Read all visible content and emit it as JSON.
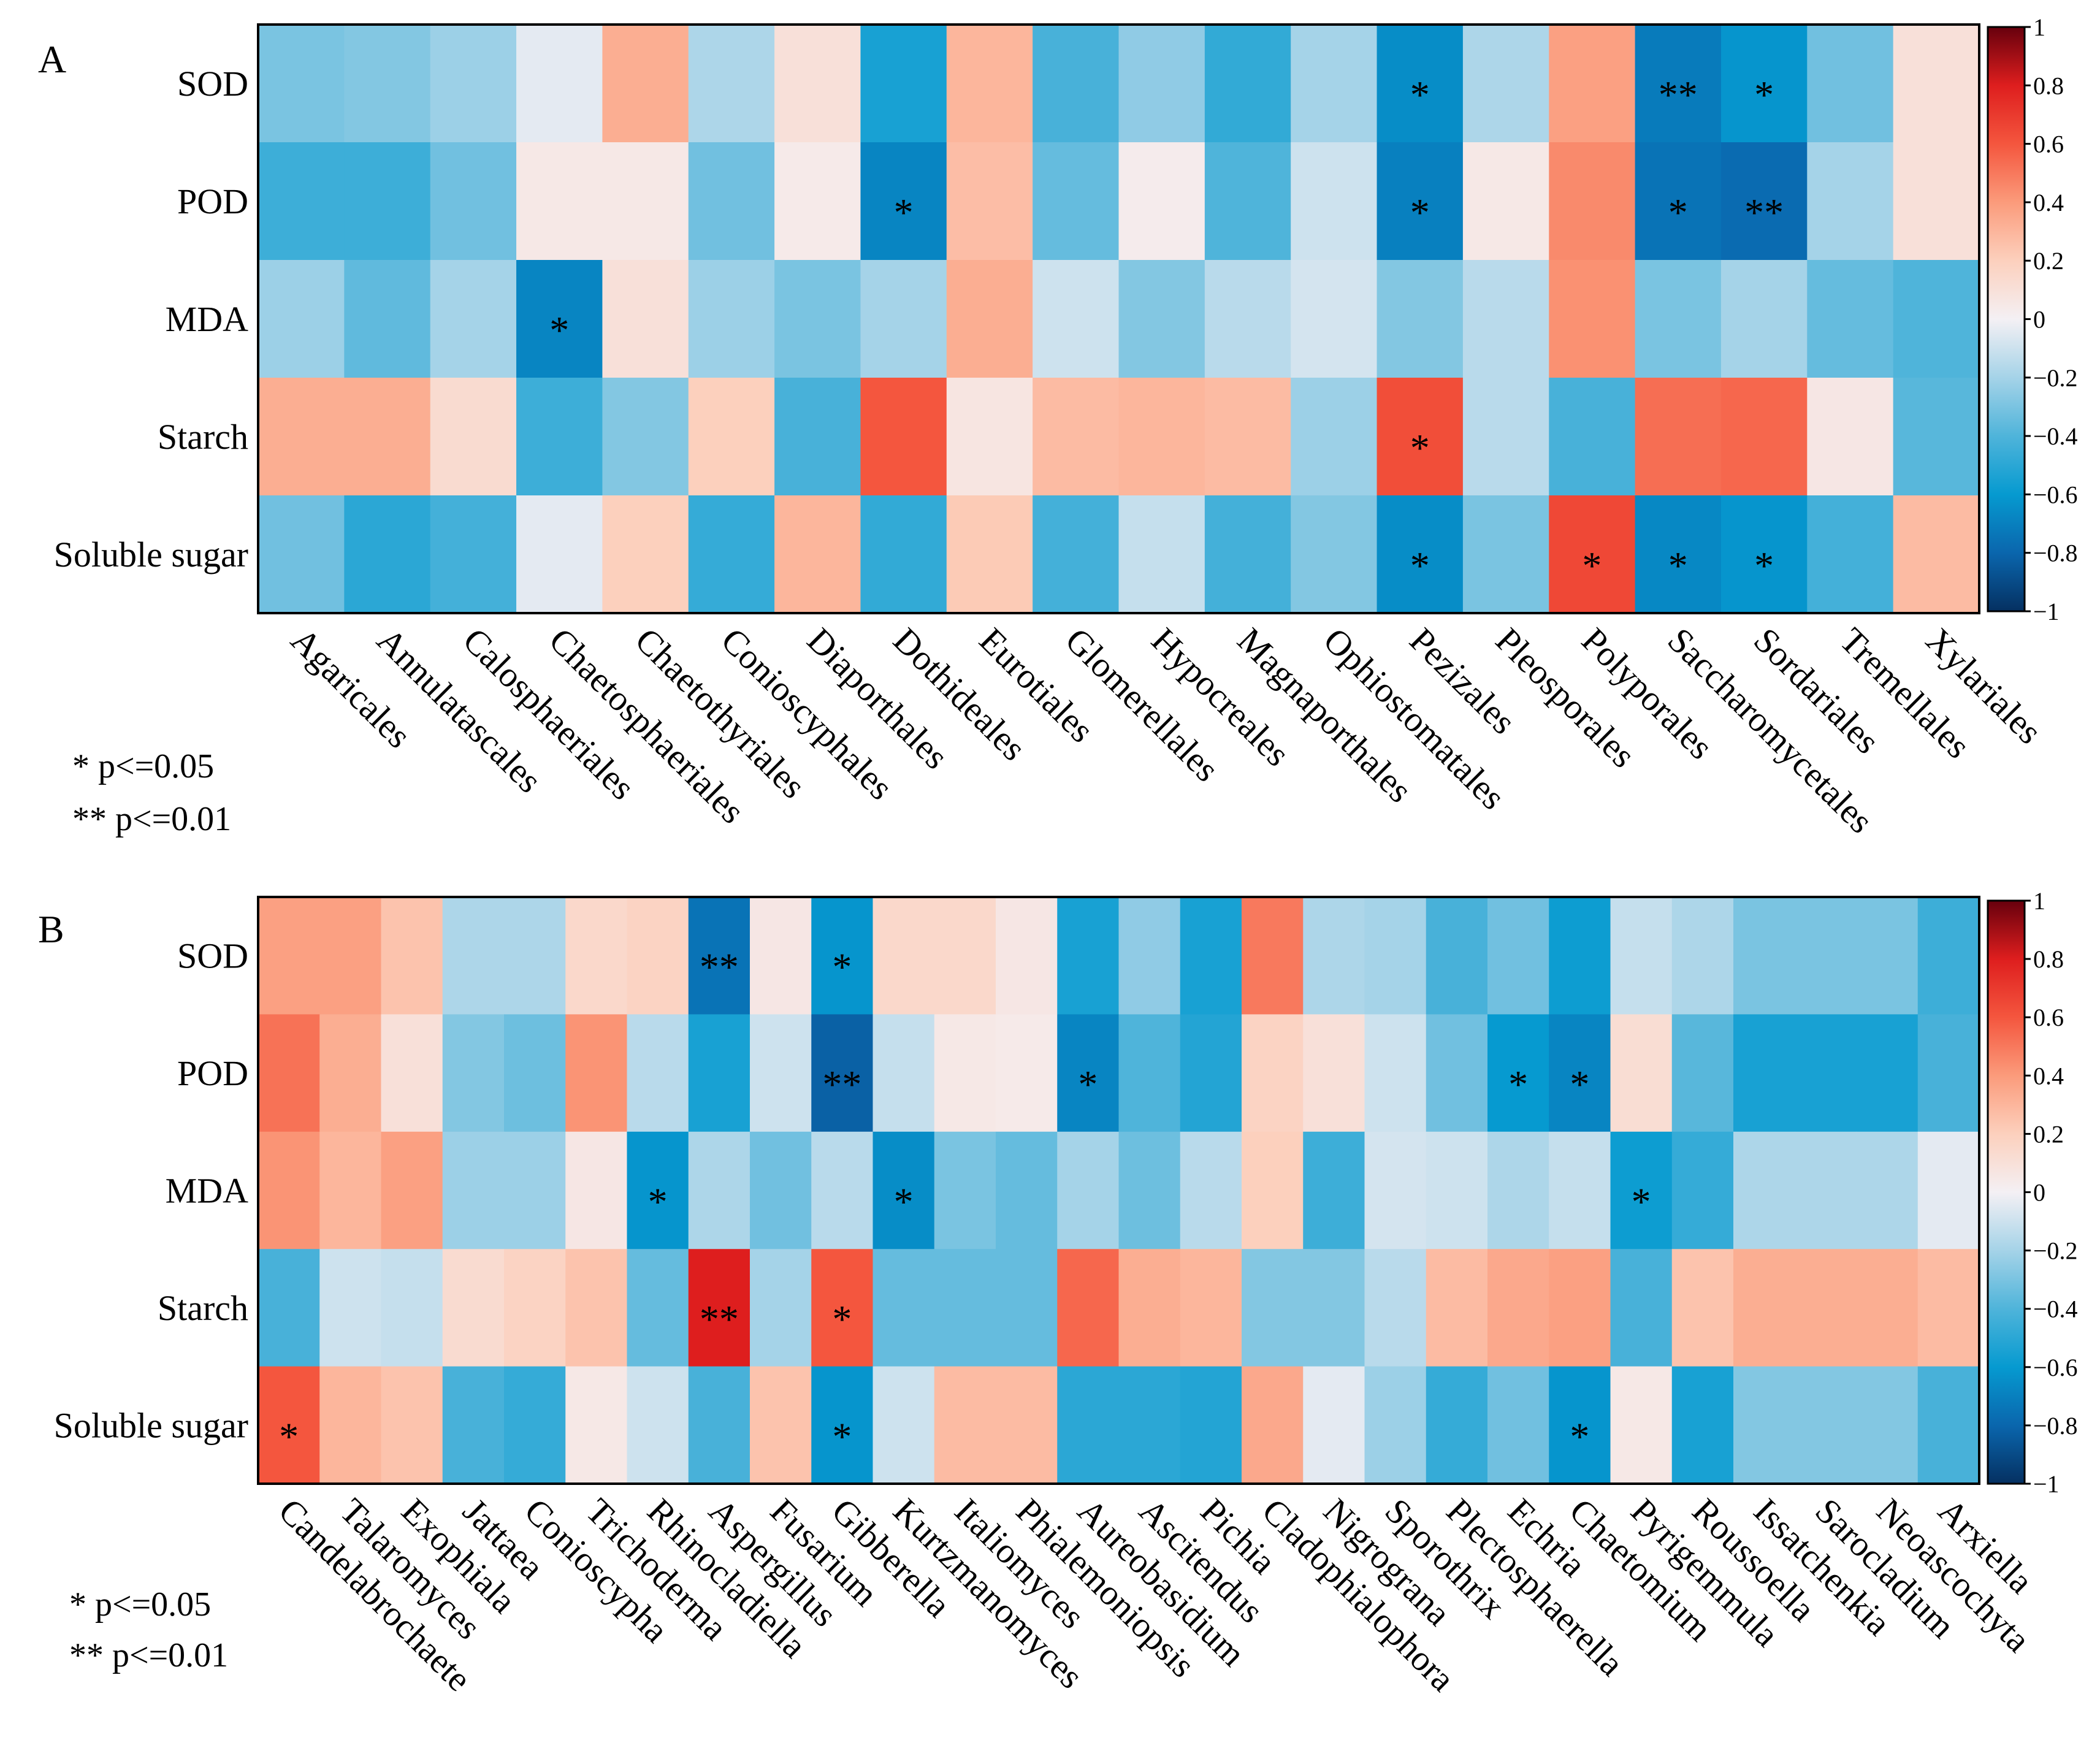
{
  "chart_data": [
    {
      "type": "heatmap",
      "panel_label": "A",
      "rows": [
        "SOD",
        "POD",
        "MDA",
        "Starch",
        "Soluble sugar"
      ],
      "columns": [
        "Agaricales",
        "Annulatascales",
        "Calosphaeriales",
        "Chaetosphaeriales",
        "Chaetothyriales",
        "Conioscyphales",
        "Diaporthales",
        "Dothideales",
        "Eurotiales",
        "Glomerellales",
        "Hypocreales",
        "Magnaporthales",
        "Ophiostomatales",
        "Pezizales",
        "Pleosporales",
        "Polyporales",
        "Saccharomycetales",
        "Sordariales",
        "Tremellales",
        "Xylariales"
      ],
      "values": [
        [
          -0.3,
          -0.28,
          -0.22,
          -0.04,
          0.33,
          -0.18,
          0.1,
          -0.55,
          0.3,
          -0.42,
          -0.25,
          -0.48,
          -0.2,
          -0.65,
          -0.18,
          0.38,
          -0.72,
          -0.62,
          -0.32,
          0.1
        ],
        [
          -0.45,
          -0.45,
          -0.32,
          0.05,
          0.05,
          -0.32,
          0.04,
          -0.68,
          0.27,
          -0.35,
          0.03,
          -0.4,
          -0.1,
          -0.7,
          0.05,
          0.45,
          -0.75,
          -0.78,
          -0.2,
          0.1
        ],
        [
          -0.22,
          -0.36,
          -0.2,
          -0.68,
          0.1,
          -0.22,
          -0.3,
          -0.2,
          0.33,
          -0.1,
          -0.28,
          -0.15,
          -0.08,
          -0.28,
          -0.15,
          0.43,
          -0.3,
          -0.2,
          -0.35,
          -0.4
        ],
        [
          0.33,
          0.33,
          0.13,
          -0.45,
          -0.28,
          0.2,
          -0.42,
          0.6,
          0.07,
          0.28,
          0.3,
          0.28,
          -0.22,
          0.63,
          -0.15,
          -0.42,
          0.53,
          0.55,
          0.06,
          -0.38
        ],
        [
          -0.32,
          -0.5,
          -0.43,
          -0.04,
          0.2,
          -0.47,
          0.3,
          -0.48,
          0.22,
          -0.43,
          -0.12,
          -0.43,
          -0.28,
          -0.65,
          -0.3,
          0.65,
          -0.67,
          -0.62,
          -0.43,
          0.28
        ]
      ],
      "significance": [
        [
          "",
          "",
          "",
          "",
          "",
          "",
          "",
          "",
          "",
          "",
          "",
          "",
          "",
          "*",
          "",
          "",
          "**",
          "*",
          "",
          ""
        ],
        [
          "",
          "",
          "",
          "",
          "",
          "",
          "",
          "*",
          "",
          "",
          "",
          "",
          "",
          "*",
          "",
          "",
          "*",
          "**",
          "",
          ""
        ],
        [
          "",
          "",
          "",
          "*",
          "",
          "",
          "",
          "",
          "",
          "",
          "",
          "",
          "",
          "",
          "",
          "",
          "",
          "",
          "",
          ""
        ],
        [
          "",
          "",
          "",
          "",
          "",
          "",
          "",
          "",
          "",
          "",
          "",
          "",
          "",
          "*",
          "",
          "",
          "",
          "",
          "",
          ""
        ],
        [
          "",
          "",
          "",
          "",
          "",
          "",
          "",
          "",
          "",
          "",
          "",
          "",
          "",
          "*",
          "",
          "*",
          "*",
          "*",
          "",
          ""
        ]
      ],
      "colorbar": {
        "min": -1,
        "max": 1,
        "ticks": [
          "1",
          "0.8",
          "0.6",
          "0.4",
          "0.2",
          "0",
          "−0.2",
          "−0.4",
          "−0.6",
          "−0.8",
          "−1"
        ]
      },
      "legend": [
        "* p<=0.05",
        "** p<=0.01"
      ]
    },
    {
      "type": "heatmap",
      "panel_label": "B",
      "rows": [
        "SOD",
        "POD",
        "MDA",
        "Starch",
        "Soluble sugar"
      ],
      "columns": [
        "Candelabrochaete",
        "Talaromyces",
        "Exophiala",
        "Jattaea",
        "Conioscypha",
        "Trichoderma",
        "Rhinocladiella",
        "Aspergillus",
        "Fusarium",
        "Gibberella",
        "Kurtzmanomyces",
        "Italiomyces",
        "Phialemoniopsis",
        "Aureobasidium",
        "Ascitendus",
        "Pichia",
        "Cladophialophora",
        "Nigrograna",
        "Sporothrix",
        "Plectosphaerella",
        "Echria",
        "Chaetomium",
        "Pyrigemmula",
        "Roussoella",
        "Issatchenkia",
        "Sarocladium",
        "Neoascochyta",
        "Arxiella"
      ],
      "values": [
        [
          0.38,
          0.38,
          0.25,
          -0.18,
          -0.18,
          0.15,
          0.18,
          -0.75,
          0.06,
          -0.62,
          0.15,
          0.15,
          0.06,
          -0.55,
          -0.25,
          -0.55,
          0.5,
          -0.18,
          -0.2,
          -0.42,
          -0.32,
          -0.58,
          -0.12,
          -0.18,
          -0.3,
          -0.3,
          -0.3,
          -0.45
        ],
        [
          0.52,
          0.33,
          0.1,
          -0.28,
          -0.33,
          0.42,
          -0.15,
          -0.55,
          -0.1,
          -0.82,
          -0.12,
          0.05,
          0.04,
          -0.68,
          -0.4,
          -0.52,
          0.18,
          0.1,
          -0.1,
          -0.32,
          -0.6,
          -0.68,
          0.12,
          -0.38,
          -0.55,
          -0.55,
          -0.55,
          -0.42
        ],
        [
          0.42,
          0.3,
          0.38,
          -0.22,
          -0.22,
          0.06,
          -0.62,
          -0.18,
          -0.32,
          -0.15,
          -0.65,
          -0.3,
          -0.35,
          -0.2,
          -0.33,
          -0.15,
          0.2,
          -0.45,
          -0.08,
          -0.1,
          -0.18,
          -0.12,
          -0.58,
          -0.47,
          -0.18,
          -0.18,
          -0.18,
          -0.04
        ],
        [
          -0.42,
          -0.1,
          -0.12,
          0.13,
          0.18,
          0.25,
          -0.35,
          0.8,
          -0.2,
          0.6,
          -0.35,
          -0.35,
          -0.35,
          0.55,
          0.33,
          0.3,
          -0.28,
          -0.28,
          -0.15,
          0.28,
          0.35,
          0.38,
          -0.42,
          0.25,
          0.33,
          0.33,
          0.33,
          0.28
        ],
        [
          0.6,
          0.3,
          0.25,
          -0.42,
          -0.47,
          0.05,
          -0.1,
          -0.42,
          0.25,
          -0.62,
          -0.1,
          0.28,
          0.28,
          -0.5,
          -0.5,
          -0.52,
          0.35,
          -0.04,
          -0.22,
          -0.47,
          -0.32,
          -0.62,
          0.05,
          -0.55,
          -0.28,
          -0.28,
          -0.28,
          -0.42
        ]
      ],
      "significance": [
        [
          "",
          "",
          "",
          "",
          "",
          "",
          "",
          "**",
          "",
          "*",
          "",
          "",
          "",
          "",
          "",
          "",
          "",
          "",
          "",
          "",
          "",
          "",
          "",
          "",
          "",
          "",
          "",
          ""
        ],
        [
          "",
          "",
          "",
          "",
          "",
          "",
          "",
          "",
          "",
          "**",
          "",
          "",
          "",
          "*",
          "",
          "",
          "",
          "",
          "",
          "",
          "*",
          "*",
          "",
          "",
          "",
          "",
          "",
          ""
        ],
        [
          "",
          "",
          "",
          "",
          "",
          "",
          "*",
          "",
          "",
          "",
          "*",
          "",
          "",
          "",
          "",
          "",
          "",
          "",
          "",
          "",
          "",
          "",
          "*",
          "",
          "",
          "",
          "",
          ""
        ],
        [
          "",
          "",
          "",
          "",
          "",
          "",
          "",
          "**",
          "",
          "*",
          "",
          "",
          "",
          "",
          "",
          "",
          "",
          "",
          "",
          "",
          "",
          "",
          "",
          "",
          "",
          "",
          "",
          ""
        ],
        [
          "*",
          "",
          "",
          "",
          "",
          "",
          "",
          "",
          "",
          "*",
          "",
          "",
          "",
          "",
          "",
          "",
          "",
          "",
          "",
          "",
          "",
          "*",
          "",
          "",
          "",
          "",
          "",
          ""
        ]
      ],
      "colorbar": {
        "min": -1,
        "max": 1,
        "ticks": [
          "1",
          "0.8",
          "0.6",
          "0.4",
          "0.2",
          "0",
          "−0.2",
          "−0.4",
          "−0.6",
          "−0.8",
          "−1"
        ]
      },
      "legend": [
        "* p<=0.05",
        "** p<=0.01"
      ]
    }
  ]
}
